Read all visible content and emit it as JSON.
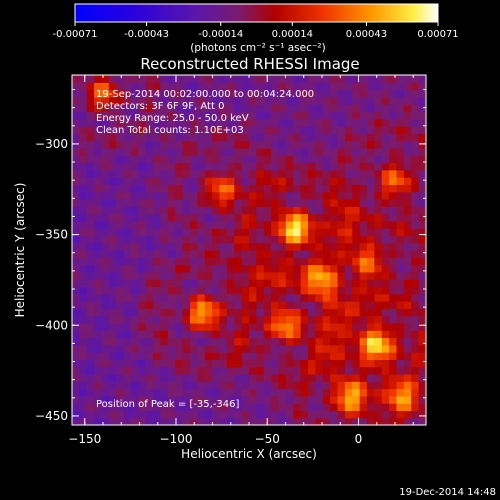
{
  "chart_data": {
    "type": "heatmap",
    "title": "Reconstructed RHESSI Image",
    "xlabel": "Heliocentric X (arcsec)",
    "ylabel": "Heliocentric Y (arcsec)",
    "xlim": [
      -157,
      37
    ],
    "ylim": [
      -455,
      -262
    ],
    "x_ticks": [
      -150,
      -100,
      -50,
      0
    ],
    "y_ticks": [
      -300,
      -350,
      -400,
      -450
    ],
    "colorbar": {
      "range": [
        -0.00071,
        0.00071
      ],
      "ticks": [
        "-0.00071",
        "-0.00043",
        "-0.00014",
        "0.00014",
        "0.00043",
        "0.00071"
      ],
      "unit_label": "(photons cm⁻² s⁻¹ asec⁻²)"
    },
    "annotations": [
      "19-Sep-2014 00:02:00.000 to 00:04:24.000",
      "Detectors: 3F 6F 9F, Att 0",
      "Energy Range: 25.0 - 50.0 keV",
      "Clean    Total counts: 1.10E+03"
    ],
    "peak_label": "Position of Peak = [-35,-346]",
    "peak": [
      -35,
      -346
    ],
    "grid": false,
    "sources": [
      {
        "x": -35,
        "y": -346,
        "amp": 0.00071
      },
      {
        "x": -85,
        "y": -393,
        "amp": 0.00062
      },
      {
        "x": 10,
        "y": -410,
        "amp": 0.0006
      },
      {
        "x": -75,
        "y": -325,
        "amp": 0.00048
      },
      {
        "x": -40,
        "y": -400,
        "amp": 0.0005
      },
      {
        "x": 20,
        "y": -320,
        "amp": 0.00045
      },
      {
        "x": -140,
        "y": -272,
        "amp": 0.0005
      },
      {
        "x": -5,
        "y": -440,
        "amp": 0.00048
      },
      {
        "x": 25,
        "y": -440,
        "amp": 0.00042
      },
      {
        "x": -20,
        "y": -375,
        "amp": 0.0004
      },
      {
        "x": 5,
        "y": -365,
        "amp": 0.00038
      }
    ]
  },
  "timestamp": "19-Dec-2014 14:48"
}
